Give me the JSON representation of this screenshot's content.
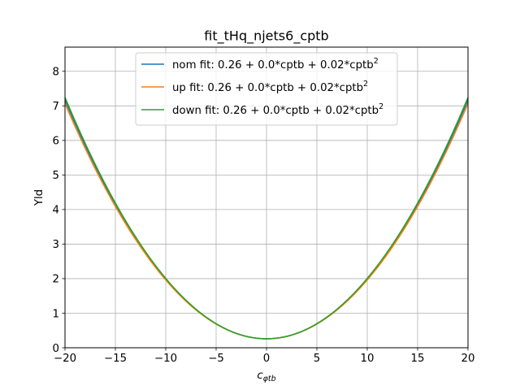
{
  "chart_data": {
    "type": "line",
    "title": "fit_tHq_njets6_cptb",
    "xlabel": "c",
    "xlabel_sub": "φtb",
    "ylabel": "Yld",
    "xlim": [
      -20,
      20
    ],
    "ylim": [
      0,
      8.7
    ],
    "xticks": [
      -20,
      -15,
      -10,
      -5,
      0,
      5,
      10,
      15,
      20
    ],
    "yticks": [
      0,
      1,
      2,
      3,
      4,
      5,
      6,
      7,
      8
    ],
    "grid": true,
    "legend_position": "upper-center",
    "x": [
      -20,
      -15,
      -10,
      -5,
      0,
      5,
      10,
      15,
      20
    ],
    "series": [
      {
        "name": "nom fit: 0.26 + 0.0*cptb + 0.02*cptb",
        "name_sup": "2",
        "color": "#1f77b4",
        "values": [
          7.17,
          4.14,
          1.98,
          0.69,
          0.26,
          0.69,
          1.98,
          4.14,
          7.17
        ]
      },
      {
        "name": "up fit: 0.26 + 0.0*cptb + 0.02*cptb",
        "name_sup": "2",
        "color": "#ff7f0e",
        "values": [
          7.07,
          4.09,
          1.96,
          0.69,
          0.26,
          0.69,
          1.96,
          4.09,
          7.07
        ]
      },
      {
        "name": "down fit: 0.26 + 0.0*cptb + 0.02*cptb",
        "name_sup": "2",
        "color": "#2ca02c",
        "values": [
          7.25,
          4.18,
          2.0,
          0.69,
          0.26,
          0.69,
          2.0,
          4.18,
          7.25
        ]
      }
    ]
  }
}
